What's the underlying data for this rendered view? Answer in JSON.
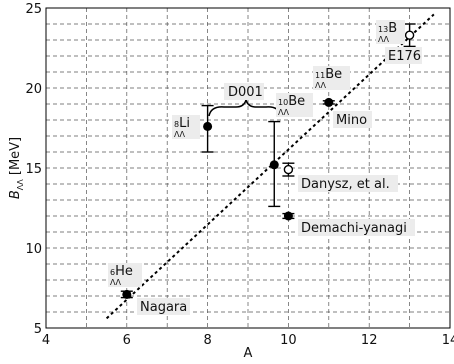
{
  "chart_data": {
    "type": "scatter",
    "xlabel": "A",
    "ylabel": "B",
    "ylabel_sub": "ΛΛ",
    "ylabel_unit": " [MeV]",
    "xlim": [
      4,
      14
    ],
    "ylim": [
      5,
      25
    ],
    "x_ticks": [
      4,
      6,
      8,
      10,
      12,
      14
    ],
    "x_tick_labels": [
      "4",
      "6",
      "8",
      "10",
      "12",
      "14"
    ],
    "y_ticks": [
      5,
      10,
      15,
      20,
      25
    ],
    "y_tick_labels": [
      "5",
      "10",
      "15",
      "20",
      "25"
    ],
    "grid": "dashed",
    "points": [
      {
        "x": 6,
        "y": 7.1,
        "err_low": 0.2,
        "err_high": 0.2,
        "marker": "filled",
        "nuclide": {
          "mass": "6",
          "sub": "ΛΛ",
          "elem": "He"
        }
      },
      {
        "x": 8,
        "y": 17.6,
        "err_low": 1.6,
        "err_high": 1.3,
        "marker": "filled",
        "nuclide": {
          "mass": "8",
          "sub": "ΛΛ",
          "elem": "Li"
        }
      },
      {
        "x": 9.65,
        "y": 15.2,
        "err_low": 2.6,
        "err_high": 2.7,
        "marker": "filled",
        "nuclide": {
          "mass": "10",
          "sub": "ΛΛ",
          "elem": "Be"
        }
      },
      {
        "x": 10,
        "y": 14.9,
        "err_low": 0.4,
        "err_high": 0.4,
        "marker": "open",
        "nuclide": null
      },
      {
        "x": 10,
        "y": 12.0,
        "err_low": 0.15,
        "err_high": 0.15,
        "marker": "filled",
        "nuclide": null
      },
      {
        "x": 11,
        "y": 19.1,
        "err_low": 0.1,
        "err_high": 0.1,
        "marker": "filled",
        "nuclide": {
          "mass": "11",
          "sub": "ΛΛ",
          "elem": "Be"
        }
      },
      {
        "x": 13,
        "y": 23.3,
        "err_low": 0.7,
        "err_high": 0.7,
        "marker": "open",
        "nuclide": {
          "mass": "13",
          "sub": "ΛΛ",
          "elem": "B"
        }
      }
    ],
    "trend_line": {
      "x": [
        5.5,
        13.6
      ],
      "y": [
        5.6,
        24.6
      ],
      "style": "dotted"
    },
    "annotations": [
      "Nagara",
      "Mino",
      "Danysz, et al.",
      "Demachi-yanagi",
      "E176",
      "D001"
    ]
  }
}
